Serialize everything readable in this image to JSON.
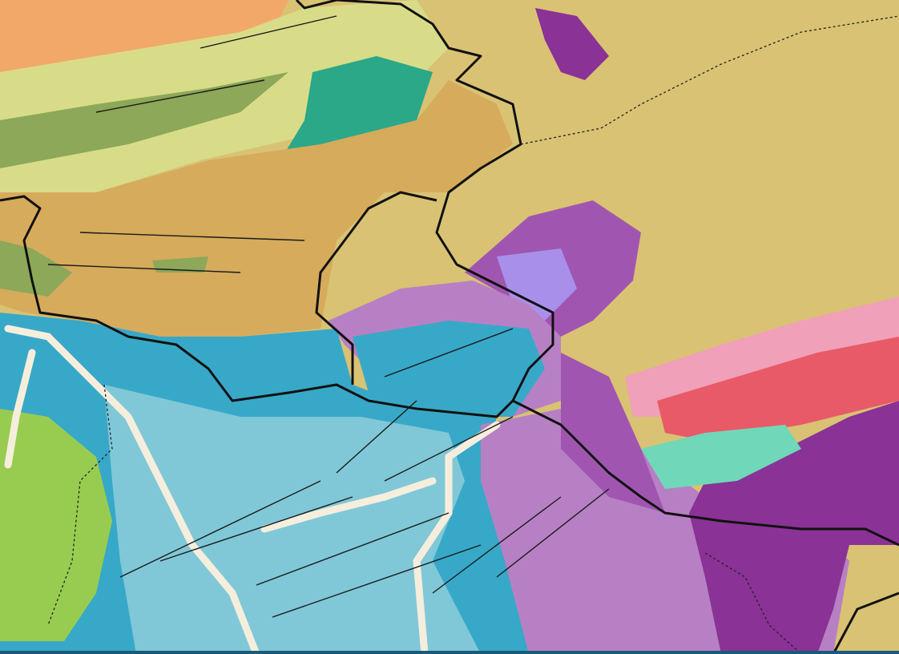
{
  "map": {
    "type": "geological-map",
    "colors": {
      "tan": "#d6ab5c",
      "khaki": "#d9c273",
      "orange": "#f2a868",
      "yellow_green": "#d8dc88",
      "olive_green": "#8ca858",
      "teal_green": "#2aa888",
      "blue": "#38a8c8",
      "light_blue": "#80c8d8",
      "cream": "#f6eedd",
      "green": "#98cc50",
      "light_purple": "#b880c4",
      "purple": "#a056b0",
      "dark_purple": "#8a3296",
      "violet": "#a890ea",
      "pink": "#f0a0b8",
      "red": "#e85a68",
      "mint": "#70d8b8",
      "border": "#111111",
      "bottom_bar": "#1b5a78"
    }
  }
}
